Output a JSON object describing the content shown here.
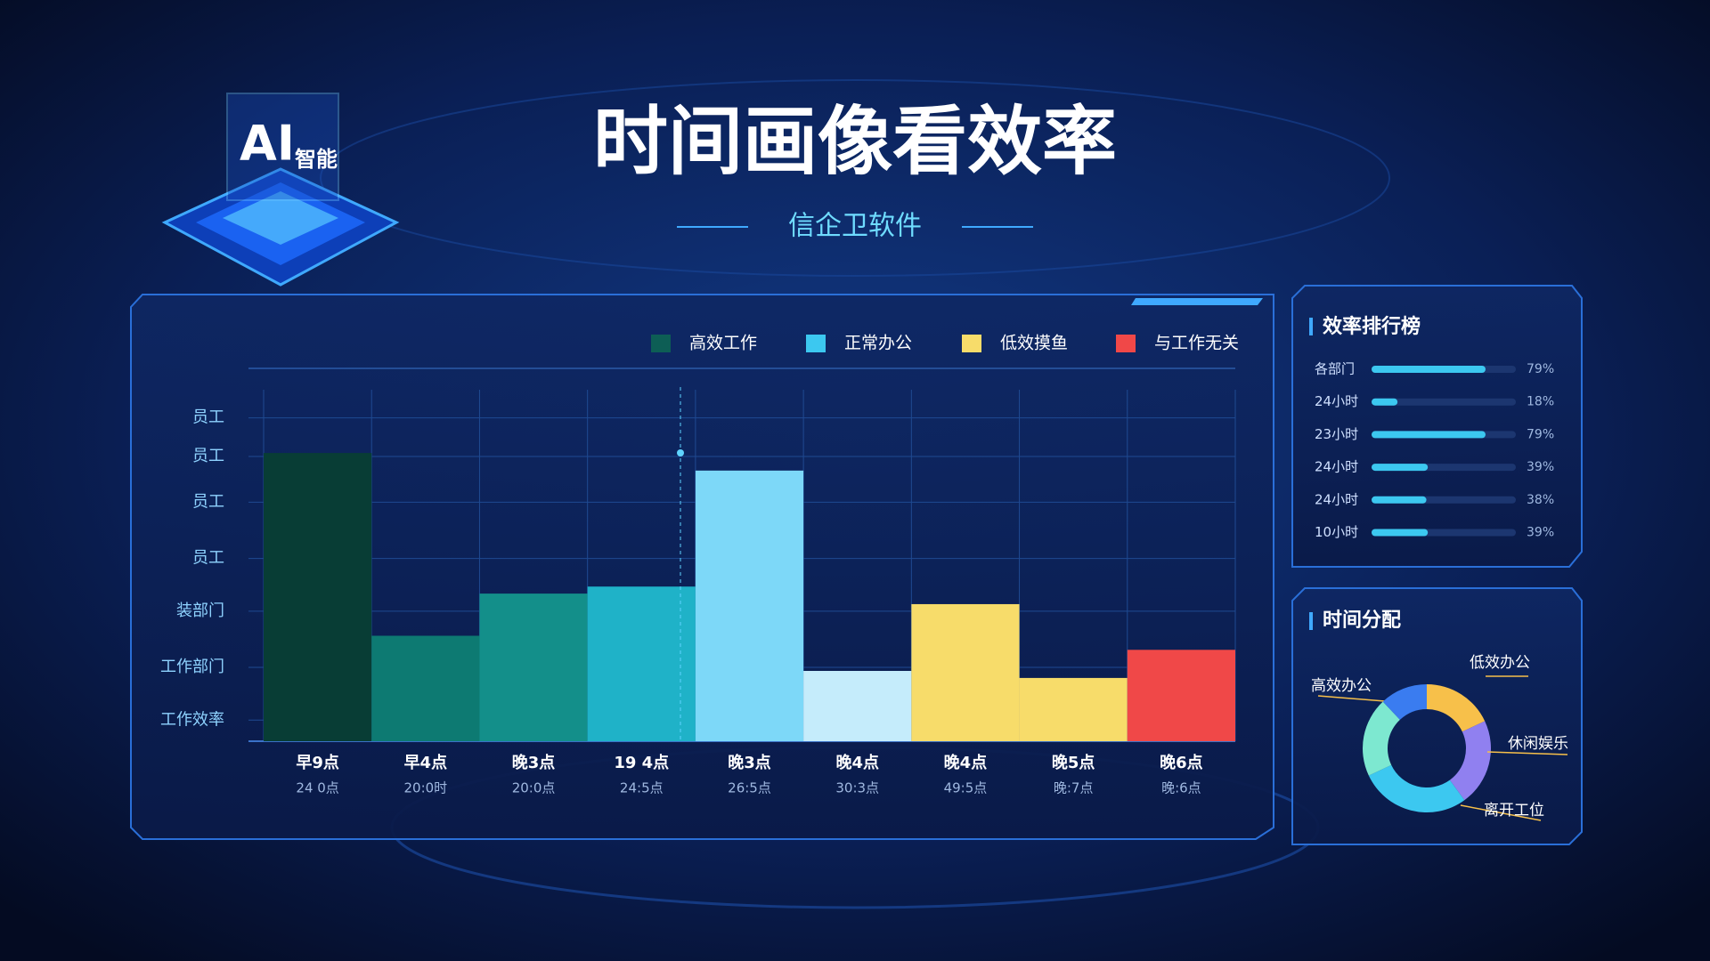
{
  "header": {
    "title": "时间画像看效率",
    "subtitle": "信企卫软件",
    "badge": "AI",
    "badge_sub": "智能"
  },
  "chart_data": [
    {
      "type": "bar",
      "legend": [
        {
          "name": "高效工作",
          "color": "#0d5e55"
        },
        {
          "name": "正常办公",
          "color": "#3cc8f0"
        },
        {
          "name": "低效摸鱼",
          "color": "#f7dc6a"
        },
        {
          "name": "与工作无关",
          "color": "#f04848"
        }
      ],
      "categories": [
        "早9点",
        "早4点",
        "晚3点",
        "19 4点",
        "晚3点",
        "晚4点",
        "晚4点",
        "晚5点",
        "晚6点"
      ],
      "sub_categories": [
        "24 0点",
        "20:0时",
        "20:0点",
        "24:5点",
        "26:5点",
        "30:3点",
        "49:5点",
        "晚:7点",
        "晚:6点"
      ],
      "values": [
        82,
        30,
        42,
        44,
        77,
        20,
        39,
        18,
        26
      ],
      "colors": [
        "#083d35",
        "#0d7a72",
        "#138f8a",
        "#1fb2c8",
        "#7dd8f8",
        "#c5ecfb",
        "#f7dc6a",
        "#f7dc6a",
        "#f04848"
      ],
      "ylim": [
        0,
        100
      ],
      "yticks": [
        {
          "value": 6,
          "label": "工作效率"
        },
        {
          "value": 21,
          "label": "工作部门"
        },
        {
          "value": 37,
          "label": "装部门"
        },
        {
          "value": 52,
          "label": "员工"
        },
        {
          "value": 68,
          "label": "员工"
        },
        {
          "value": 81,
          "label": "员工"
        },
        {
          "value": 92,
          "label": "员工"
        }
      ],
      "grid": true
    },
    {
      "type": "hbar",
      "title": "效率排行榜",
      "categories": [
        "各部门",
        "24小时",
        "23小时",
        "24小时",
        "24小时",
        "10小时"
      ],
      "values": [
        79,
        18,
        79,
        39,
        38,
        39
      ],
      "value_labels": [
        "79%",
        "18%",
        "79%",
        "39%",
        "38%",
        "39%"
      ],
      "xlim": [
        0,
        100
      ],
      "color": "#3cc8f0"
    },
    {
      "type": "donut",
      "title": "时间分配",
      "categories": [
        "低效办公",
        "休闲娱乐",
        "离开工位",
        "高效办公",
        null
      ],
      "values": [
        18,
        22,
        28,
        20,
        12
      ],
      "colors": [
        "#f7c04a",
        "#9080f0",
        "#3cc8f0",
        "#7de8d0",
        "#3a7cf0"
      ]
    }
  ]
}
